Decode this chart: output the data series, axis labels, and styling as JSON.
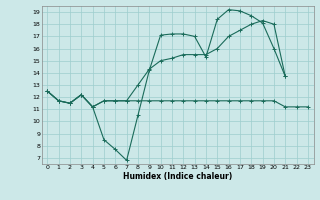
{
  "bg_color": "#cce8e8",
  "line_color": "#1a6b5a",
  "grid_color": "#9ecece",
  "xlabel": "Humidex (Indice chaleur)",
  "xlim": [
    -0.5,
    23.5
  ],
  "ylim": [
    6.5,
    19.5
  ],
  "xticks": [
    0,
    1,
    2,
    3,
    4,
    5,
    6,
    7,
    8,
    9,
    10,
    11,
    12,
    13,
    14,
    15,
    16,
    17,
    18,
    19,
    20,
    21,
    22,
    23
  ],
  "yticks": [
    7,
    8,
    9,
    10,
    11,
    12,
    13,
    14,
    15,
    16,
    17,
    18,
    19
  ],
  "series1": {
    "x": [
      0,
      1,
      2,
      3,
      4,
      5,
      6,
      7,
      8,
      9,
      10,
      11,
      12,
      13,
      14,
      15,
      16,
      17,
      18,
      19,
      20,
      21
    ],
    "y": [
      12.5,
      11.7,
      11.5,
      12.2,
      11.2,
      8.5,
      7.7,
      6.8,
      10.5,
      14.2,
      17.1,
      17.2,
      17.2,
      17.0,
      15.3,
      18.4,
      19.2,
      19.1,
      18.7,
      18.1,
      16.0,
      13.7
    ]
  },
  "series2": {
    "x": [
      0,
      1,
      2,
      3,
      4,
      5,
      6,
      7,
      8,
      9,
      10,
      11,
      12,
      13,
      14,
      15,
      16,
      17,
      18,
      19,
      20,
      21,
      22,
      23
    ],
    "y": [
      12.5,
      11.7,
      11.5,
      12.2,
      11.2,
      11.7,
      11.7,
      11.7,
      11.7,
      11.7,
      11.7,
      11.7,
      11.7,
      11.7,
      11.7,
      11.7,
      11.7,
      11.7,
      11.7,
      11.7,
      11.7,
      11.2,
      11.2,
      11.2
    ]
  },
  "series3": {
    "x": [
      0,
      1,
      2,
      3,
      4,
      5,
      6,
      7,
      8,
      9,
      10,
      11,
      12,
      13,
      14,
      15,
      16,
      17,
      18,
      19,
      20,
      21
    ],
    "y": [
      12.5,
      11.7,
      11.5,
      12.2,
      11.2,
      11.7,
      11.7,
      11.7,
      13.0,
      14.3,
      15.0,
      15.2,
      15.5,
      15.5,
      15.5,
      16.0,
      17.0,
      17.5,
      18.0,
      18.3,
      18.0,
      13.7
    ]
  },
  "xlabel_fontsize": 5.5,
  "tick_fontsize": 4.5,
  "linewidth": 0.8,
  "markersize": 2.5
}
